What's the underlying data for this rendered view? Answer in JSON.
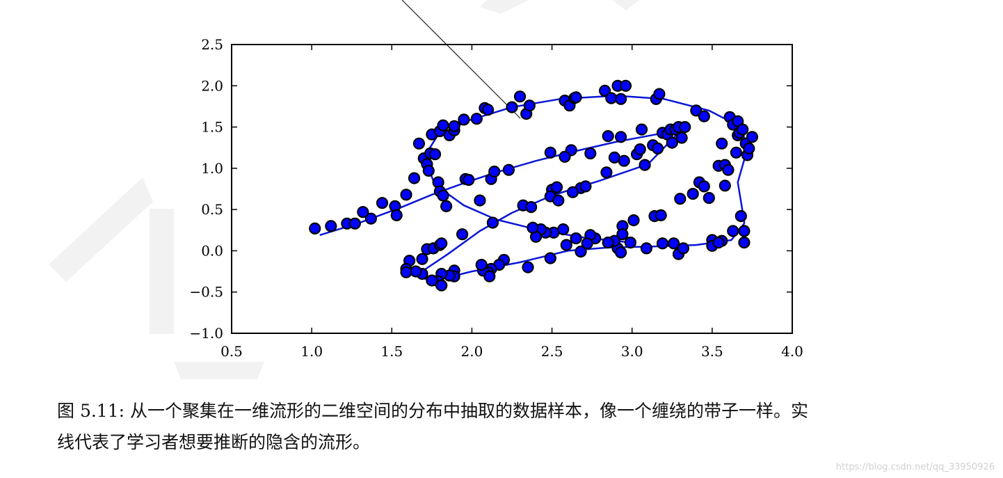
{
  "chart_data": {
    "type": "scatter",
    "title": "",
    "xlabel": "",
    "ylabel": "",
    "xlim": [
      0.5,
      4.0
    ],
    "ylim": [
      -1.0,
      2.5
    ],
    "xticks": [
      0.5,
      1.0,
      1.5,
      2.0,
      2.5,
      3.0,
      3.5,
      4.0
    ],
    "yticks": [
      -1.0,
      -0.5,
      0.0,
      0.5,
      1.0,
      1.5,
      2.0,
      2.5
    ],
    "xtick_labels": [
      "0.5",
      "1.0",
      "1.5",
      "2.0",
      "2.5",
      "3.0",
      "3.5",
      "4.0"
    ],
    "ytick_labels": [
      "−1.0",
      "−0.5",
      "0.0",
      "0.5",
      "1.0",
      "1.5",
      "2.0",
      "2.5"
    ],
    "grid": false,
    "legend": "none",
    "marker_color": "#0000ff",
    "marker_edge_color": "#000000",
    "line_color": "#0a16d6",
    "points": [
      [
        1.02,
        0.27
      ],
      [
        1.12,
        0.3
      ],
      [
        1.22,
        0.33
      ],
      [
        1.27,
        0.33
      ],
      [
        1.32,
        0.47
      ],
      [
        1.37,
        0.39
      ],
      [
        1.44,
        0.58
      ],
      [
        1.52,
        0.54
      ],
      [
        1.53,
        0.43
      ],
      [
        1.59,
        0.68
      ],
      [
        1.64,
        0.88
      ],
      [
        1.67,
        1.3
      ],
      [
        1.7,
        1.12
      ],
      [
        1.72,
        1.05
      ],
      [
        1.74,
        1.18
      ],
      [
        1.75,
        1.41
      ],
      [
        1.77,
        1.17
      ],
      [
        1.73,
        0.97
      ],
      [
        1.79,
        0.83
      ],
      [
        1.8,
        0.72
      ],
      [
        1.82,
        0.67
      ],
      [
        1.84,
        0.54
      ],
      [
        1.8,
        1.45
      ],
      [
        1.82,
        1.52
      ],
      [
        1.86,
        1.4
      ],
      [
        1.89,
        1.46
      ],
      [
        1.89,
        1.51
      ],
      [
        1.95,
        1.59
      ],
      [
        1.96,
        0.87
      ],
      [
        1.98,
        0.86
      ],
      [
        2.03,
        1.6
      ],
      [
        2.08,
        1.73
      ],
      [
        2.1,
        1.71
      ],
      [
        2.12,
        0.87
      ],
      [
        2.14,
        0.96
      ],
      [
        2.23,
        0.98
      ],
      [
        2.25,
        1.74
      ],
      [
        2.3,
        1.87
      ],
      [
        2.34,
        1.66
      ],
      [
        2.36,
        1.76
      ],
      [
        2.05,
        0.61
      ],
      [
        2.32,
        0.55
      ],
      [
        2.37,
        0.53
      ],
      [
        2.13,
        0.34
      ],
      [
        2.49,
        1.19
      ],
      [
        2.5,
        0.74
      ],
      [
        2.53,
        0.77
      ],
      [
        2.49,
        0.66
      ],
      [
        2.54,
        0.61
      ],
      [
        2.58,
        1.82
      ],
      [
        2.61,
        1.76
      ],
      [
        2.64,
        1.85
      ],
      [
        2.65,
        1.86
      ],
      [
        2.62,
        1.22
      ],
      [
        2.58,
        1.14
      ],
      [
        2.68,
        0.76
      ],
      [
        2.71,
        0.78
      ],
      [
        2.63,
        0.71
      ],
      [
        2.74,
        1.18
      ],
      [
        2.83,
        1.94
      ],
      [
        2.87,
        1.85
      ],
      [
        2.91,
        2.0
      ],
      [
        2.93,
        1.84
      ],
      [
        2.96,
        2.0
      ],
      [
        2.85,
        1.39
      ],
      [
        2.93,
        1.38
      ],
      [
        2.89,
        1.13
      ],
      [
        2.95,
        1.09
      ],
      [
        2.84,
        0.95
      ],
      [
        3.03,
        1.17
      ],
      [
        3.05,
        1.23
      ],
      [
        3.06,
        1.47
      ],
      [
        3.08,
        1.04
      ],
      [
        3.13,
        1.28
      ],
      [
        3.15,
        1.84
      ],
      [
        3.17,
        1.9
      ],
      [
        3.16,
        1.24
      ],
      [
        3.19,
        1.43
      ],
      [
        3.22,
        1.41
      ],
      [
        3.24,
        1.47
      ],
      [
        3.25,
        1.31
      ],
      [
        3.27,
        1.47
      ],
      [
        3.29,
        1.5
      ],
      [
        3.31,
        1.37
      ],
      [
        3.33,
        1.5
      ],
      [
        3.3,
        0.63
      ],
      [
        3.4,
        1.7
      ],
      [
        3.45,
        1.63
      ],
      [
        3.42,
        0.83
      ],
      [
        3.45,
        0.78
      ],
      [
        3.48,
        0.64
      ],
      [
        3.54,
        1.03
      ],
      [
        3.56,
        1.3
      ],
      [
        3.58,
        1.04
      ],
      [
        3.58,
        0.79
      ],
      [
        3.6,
        0.98
      ],
      [
        3.61,
        1.62
      ],
      [
        3.63,
        1.53
      ],
      [
        3.65,
        1.19
      ],
      [
        3.66,
        1.57
      ],
      [
        3.66,
        1.4
      ],
      [
        3.67,
        1.43
      ],
      [
        3.69,
        1.47
      ],
      [
        3.71,
        1.3
      ],
      [
        3.72,
        1.16
      ],
      [
        3.73,
        1.24
      ],
      [
        3.75,
        1.38
      ],
      [
        3.68,
        0.42
      ],
      [
        3.7,
        0.24
      ],
      [
        3.7,
        0.1
      ],
      [
        3.63,
        0.24
      ],
      [
        3.56,
        0.12
      ],
      [
        3.5,
        0.13
      ],
      [
        3.5,
        0.06
      ],
      [
        3.54,
        0.1
      ],
      [
        3.38,
        0.69
      ],
      [
        3.29,
        -0.04
      ],
      [
        3.32,
        0.03
      ],
      [
        3.26,
        0.09
      ],
      [
        3.19,
        0.09
      ],
      [
        3.14,
        0.42
      ],
      [
        3.18,
        0.43
      ],
      [
        3.09,
        0.03
      ],
      [
        3.01,
        0.37
      ],
      [
        2.99,
        0.1
      ],
      [
        2.94,
        0.3
      ],
      [
        2.94,
        0.2
      ],
      [
        2.91,
        0.03
      ],
      [
        2.89,
        0.12
      ],
      [
        2.85,
        0.1
      ],
      [
        2.93,
        -0.02
      ],
      [
        2.77,
        0.15
      ],
      [
        2.74,
        0.19
      ],
      [
        2.72,
        0.09
      ],
      [
        2.68,
        -0.01
      ],
      [
        2.65,
        0.15
      ],
      [
        2.59,
        0.07
      ],
      [
        2.51,
        0.22
      ],
      [
        2.57,
        0.26
      ],
      [
        2.46,
        0.22
      ],
      [
        2.43,
        0.26
      ],
      [
        2.4,
        0.17
      ],
      [
        2.38,
        0.28
      ],
      [
        2.35,
        -0.2
      ],
      [
        2.49,
        -0.09
      ],
      [
        2.2,
        -0.11
      ],
      [
        2.17,
        -0.17
      ],
      [
        2.12,
        -0.22
      ],
      [
        2.1,
        -0.26
      ],
      [
        2.07,
        -0.24
      ],
      [
        2.11,
        -0.31
      ],
      [
        2.06,
        -0.17
      ],
      [
        1.94,
        0.2
      ],
      [
        1.89,
        -0.24
      ],
      [
        1.89,
        -0.31
      ],
      [
        1.86,
        -0.3
      ],
      [
        1.81,
        -0.28
      ],
      [
        1.79,
        -0.37
      ],
      [
        1.81,
        -0.42
      ],
      [
        1.75,
        -0.36
      ],
      [
        1.69,
        -0.28
      ],
      [
        1.65,
        -0.25
      ],
      [
        1.61,
        -0.12
      ],
      [
        1.59,
        -0.22
      ],
      [
        1.59,
        -0.26
      ],
      [
        1.69,
        -0.1
      ],
      [
        1.72,
        0.02
      ],
      [
        1.76,
        0.03
      ],
      [
        1.8,
        0.07
      ],
      [
        1.81,
        0.09
      ]
    ],
    "curve": [
      [
        1.05,
        0.19
      ],
      [
        1.3,
        0.34
      ],
      [
        1.55,
        0.52
      ],
      [
        1.75,
        0.68
      ],
      [
        1.95,
        0.82
      ],
      [
        2.15,
        0.95
      ],
      [
        2.4,
        1.09
      ],
      [
        2.65,
        1.21
      ],
      [
        2.9,
        1.32
      ],
      [
        3.15,
        1.41
      ],
      [
        3.3,
        1.45
      ],
      [
        3.1,
        1.05
      ],
      [
        2.8,
        0.85
      ],
      [
        2.5,
        0.67
      ],
      [
        2.25,
        0.46
      ],
      [
        2.05,
        0.24
      ],
      [
        1.85,
        -0.04
      ],
      [
        1.65,
        -0.3
      ],
      [
        1.75,
        -0.37
      ],
      [
        2.0,
        -0.25
      ],
      [
        2.3,
        -0.14
      ],
      [
        2.6,
        0.0
      ],
      [
        2.85,
        0.04
      ],
      [
        3.1,
        0.05
      ],
      [
        3.4,
        0.07
      ],
      [
        3.62,
        0.13
      ],
      [
        3.7,
        0.33
      ],
      [
        3.7,
        0.36
      ],
      [
        3.66,
        0.83
      ],
      [
        3.7,
        1.1
      ],
      [
        3.72,
        1.3
      ],
      [
        3.66,
        1.52
      ],
      [
        3.48,
        1.7
      ],
      [
        3.2,
        1.84
      ],
      [
        2.9,
        1.88
      ],
      [
        2.55,
        1.84
      ],
      [
        2.25,
        1.74
      ],
      [
        1.98,
        1.58
      ],
      [
        1.78,
        1.38
      ],
      [
        1.7,
        1.13
      ],
      [
        1.77,
        0.8
      ],
      [
        1.95,
        0.55
      ],
      [
        2.15,
        0.38
      ],
      [
        2.4,
        0.26
      ],
      [
        2.7,
        0.16
      ],
      [
        3.0,
        0.1
      ]
    ]
  },
  "caption": {
    "line1": "图 5.11: 从一个聚集在一维流形的二维空间的分布中抽取的数据样本，像一个缠绕的带子一样。实",
    "line2": "线代表了学习者想要推断的隐含的流形。"
  },
  "watermark": {
    "url": "https://blog.csdn.net/qq_33950926"
  }
}
